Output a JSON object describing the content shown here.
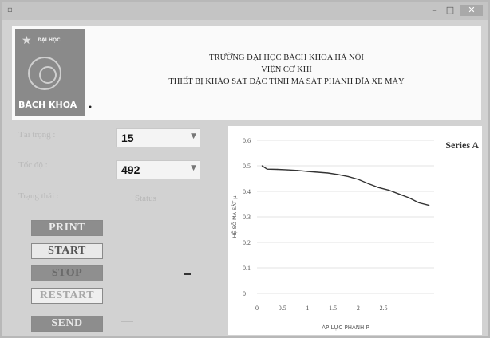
{
  "window": {
    "minimize": "–",
    "maximize": "□",
    "close": "✕"
  },
  "header": {
    "logo_top": "ĐẠI HỌC",
    "logo_text": "BÁCH KHOA",
    "line1": "TRƯỜNG ĐẠI HỌC BÁCH KHOA HÀ NỘI",
    "line2": "VIỆN CƠ KHÍ",
    "line3": "THIẾT BỊ KHẢO SÁT ĐẶC TÍNH MA SÁT PHANH ĐĨA XE MÁY"
  },
  "controls": {
    "load_label": "Tải trọng :",
    "load_value": "15",
    "speed_label": "Tốc độ      :",
    "speed_value": "492",
    "state_label": "Trạng thái :",
    "status_text": "Status"
  },
  "buttons": {
    "print": "PRINT",
    "start": "START",
    "stop": "STOP",
    "restart": "RESTART",
    "send": "SEND"
  },
  "chart_data": {
    "type": "line",
    "legend": "Series A",
    "legend_position": "top-right",
    "xlabel": "ÁP LỰC PHANH  P",
    "ylabel": "HỆ SỐ MA SÁT  μ",
    "xlim": [
      0,
      3.5
    ],
    "ylim": [
      0,
      0.6
    ],
    "xticks": [
      "0",
      "0.5",
      "1",
      "1.5",
      "2",
      "2.5"
    ],
    "xtick_values": [
      0,
      0.5,
      1,
      1.5,
      2,
      2.5
    ],
    "yticks": [
      "0",
      "0.1",
      "0.2",
      "0.3",
      "0.4",
      "0.5",
      "0.6"
    ],
    "ytick_values": [
      0,
      0.1,
      0.2,
      0.3,
      0.4,
      0.5,
      0.6
    ],
    "grid": true,
    "series": [
      {
        "name": "Series A",
        "color": "#333333",
        "x": [
          0.1,
          0.2,
          0.4,
          0.6,
          0.8,
          1.0,
          1.2,
          1.4,
          1.6,
          1.8,
          2.0,
          2.2,
          2.4,
          2.6,
          2.8,
          3.0,
          3.2,
          3.4
        ],
        "y": [
          0.5,
          0.487,
          0.486,
          0.484,
          0.482,
          0.478,
          0.475,
          0.472,
          0.466,
          0.458,
          0.447,
          0.43,
          0.415,
          0.405,
          0.39,
          0.375,
          0.355,
          0.345
        ]
      }
    ]
  }
}
